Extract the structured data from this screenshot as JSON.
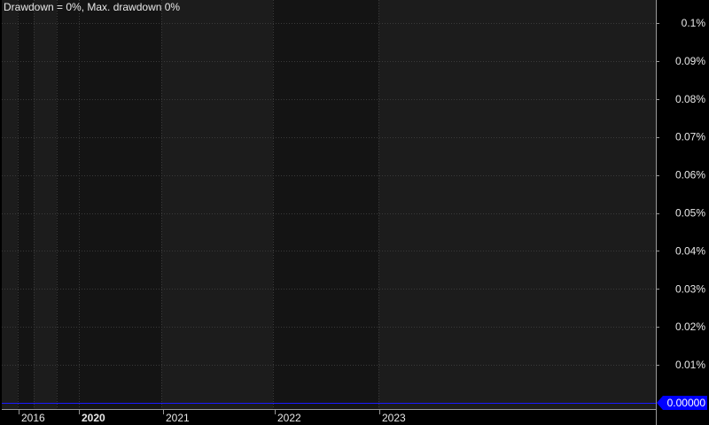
{
  "title": "Drawdown = 0%, Max. drawdown 0%",
  "colors": {
    "background": "#000000",
    "plot_band_a": "#1c1c1c",
    "plot_band_b": "#141414",
    "grid": "#3a3a3a",
    "text": "#e8e8e8",
    "series": "#1a1aff",
    "value_badge": "#0000ff",
    "value_badge_text": "#ffffff"
  },
  "chart_data": {
    "type": "line",
    "title": "Drawdown = 0%, Max. drawdown 0%",
    "xlabel": "",
    "ylabel": "",
    "x_ticks": [
      {
        "label": "2016",
        "bold": false
      },
      {
        "label": "2020",
        "bold": true
      },
      {
        "label": "2021",
        "bold": false
      },
      {
        "label": "2022",
        "bold": false
      },
      {
        "label": "2023",
        "bold": false
      }
    ],
    "x_ticks_decimal_year": [
      2016.0,
      2020.0,
      2021.0,
      2022.0,
      2023.0
    ],
    "y_ticks": [
      "0.01%",
      "0.02%",
      "0.03%",
      "0.04%",
      "0.05%",
      "0.06%",
      "0.07%",
      "0.08%",
      "0.09%",
      "0.1%"
    ],
    "y_tick_values": [
      0.01,
      0.02,
      0.03,
      0.04,
      0.05,
      0.06,
      0.07,
      0.08,
      0.09,
      0.1
    ],
    "ylim": [
      0,
      0.1
    ],
    "y_unit": "%",
    "series": [
      {
        "values": [
          0,
          0,
          0,
          0,
          0
        ]
      }
    ],
    "last_value_label": "0.00000",
    "grid": true,
    "y_axis_position": "right"
  }
}
